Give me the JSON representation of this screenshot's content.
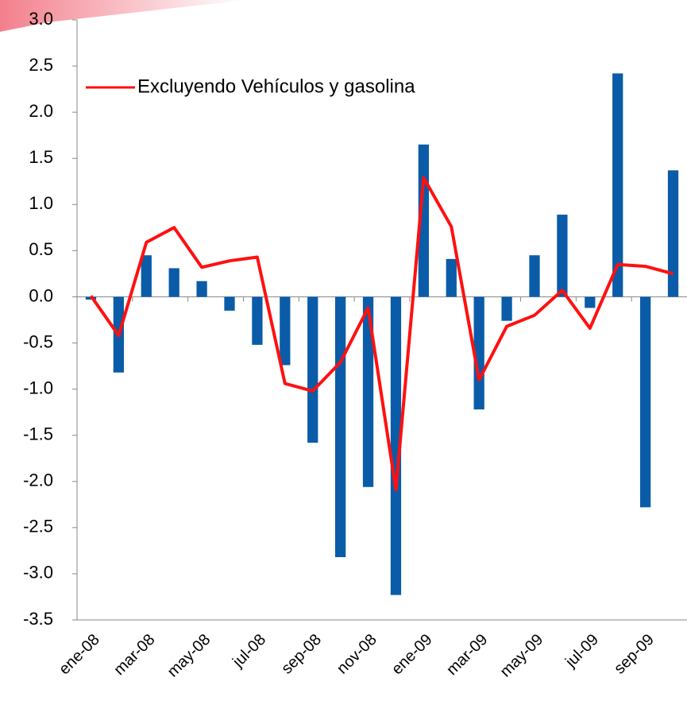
{
  "chart_data": {
    "type": "bar-line",
    "categories": [
      "ene-08",
      null,
      "mar-08",
      null,
      "may-08",
      null,
      "jul-08",
      null,
      "sep-08",
      null,
      "nov-08",
      null,
      "ene-09",
      null,
      "mar-09",
      null,
      "may-09",
      null,
      "jul-09",
      null,
      "sep-09",
      null
    ],
    "series": [
      {
        "type": "bar",
        "color": "#0a5ca8",
        "values": [
          -0.03,
          -0.82,
          0.45,
          0.31,
          0.17,
          -0.15,
          -0.52,
          -0.74,
          -1.58,
          -2.82,
          -2.06,
          -3.23,
          1.65,
          0.41,
          -1.22,
          -0.26,
          0.45,
          0.89,
          -0.12,
          2.42,
          -2.28,
          1.37
        ]
      },
      {
        "type": "line",
        "name": "Excluyendo Vehículos y gasolina",
        "color": "#ff1010",
        "values": [
          0.01,
          -0.42,
          0.59,
          0.75,
          0.32,
          0.39,
          0.43,
          -0.94,
          -1.02,
          -0.71,
          -0.12,
          -2.09,
          1.29,
          0.76,
          -0.9,
          -0.32,
          -0.2,
          0.07,
          -0.34,
          0.35,
          0.33,
          0.25
        ]
      }
    ],
    "ylim": [
      -3.5,
      3.0
    ],
    "yticks": [
      {
        "value": -3.5,
        "label": "-3.5"
      },
      {
        "value": -3,
        "label": "-3.0"
      },
      -2.5,
      {
        "value": -2,
        "label": "-2.0"
      },
      -1.5,
      {
        "value": -1,
        "label": "-1.0"
      },
      -0.5,
      {
        "value": 0,
        "label": "0.0"
      },
      0.5,
      {
        "value": 1,
        "label": "1.0"
      },
      1.5,
      {
        "value": 2,
        "label": "2.0"
      },
      2.5,
      {
        "value": 3,
        "label": "3.0"
      }
    ],
    "legend": "upper left",
    "grid": false
  }
}
